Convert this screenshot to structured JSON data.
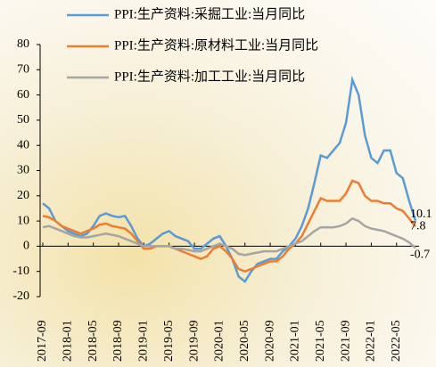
{
  "chart_data": {
    "type": "line",
    "categories": [
      "2017-09",
      null,
      null,
      null,
      "2018-01",
      null,
      null,
      null,
      "2018-05",
      null,
      null,
      null,
      "2018-09",
      null,
      null,
      null,
      "2019-01",
      null,
      null,
      null,
      "2019-05",
      null,
      null,
      null,
      "2019-09",
      null,
      null,
      null,
      "2020-01",
      null,
      null,
      null,
      "2020-05",
      null,
      null,
      null,
      "2020-09",
      null,
      null,
      null,
      "2021-01",
      null,
      null,
      null,
      "2021-05",
      null,
      null,
      null,
      "2021-09",
      null,
      null,
      null,
      "2022-01",
      null,
      null,
      null,
      "2022-05",
      null,
      null,
      null
    ],
    "series": [
      {
        "name": "PPI:生产资料:采掘工业:当月同比",
        "color": "#5b9bd5",
        "values": [
          17,
          15,
          10,
          8,
          6,
          5,
          4,
          5,
          8,
          12,
          13,
          12,
          11.5,
          12,
          8,
          3,
          0,
          1,
          3,
          5,
          6,
          4,
          3,
          2,
          -1,
          -1,
          1,
          3,
          4,
          0,
          -5,
          -12,
          -14,
          -10,
          -7,
          -6,
          -5,
          -5,
          -2,
          0,
          3,
          8,
          15,
          25,
          36,
          35,
          38,
          41,
          49,
          66,
          60,
          44,
          35,
          33,
          38,
          38,
          29,
          27,
          18,
          10.1
        ]
      },
      {
        "name": "PPI:生产资料:原材料工业:当月同比",
        "color": "#ed7d31",
        "values": [
          12,
          11.5,
          10,
          8,
          7,
          6,
          5,
          6,
          7,
          8.5,
          9,
          8,
          7.5,
          7,
          5,
          2,
          -1,
          -1,
          0,
          0,
          0,
          -1,
          -2,
          -3,
          -4,
          -5,
          -4,
          -1,
          0,
          -2,
          -5,
          -9,
          -10,
          -9,
          -8,
          -7,
          -6,
          -6,
          -4,
          -1,
          1,
          4,
          9,
          14,
          19,
          18,
          18,
          18,
          21,
          26,
          25,
          20,
          18,
          18,
          17,
          17,
          15,
          14,
          11,
          7.8
        ]
      },
      {
        "name": "PPI:生产资料:加工工业:当月同比",
        "color": "#a5a5a5",
        "values": [
          7.5,
          8,
          7,
          6,
          5,
          4,
          3.5,
          3.5,
          4,
          4.5,
          5,
          4.5,
          4,
          3,
          2,
          1,
          0,
          0,
          0,
          0,
          0,
          -1,
          -1,
          -1.5,
          -2,
          -2,
          -1,
          0,
          1,
          0,
          -1,
          -3,
          -3.5,
          -3,
          -2.5,
          -2,
          -2,
          -2,
          -1,
          0,
          1,
          2,
          4,
          6,
          7.5,
          7.5,
          7.5,
          8,
          9,
          11,
          10,
          8,
          7,
          6.5,
          6,
          5,
          4,
          3,
          1.5,
          -0.7
        ]
      }
    ],
    "ylim": [
      -20,
      80
    ],
    "yticks": [
      -20,
      -10,
      0,
      10,
      20,
      30,
      40,
      50,
      60,
      70,
      80
    ]
  }
}
